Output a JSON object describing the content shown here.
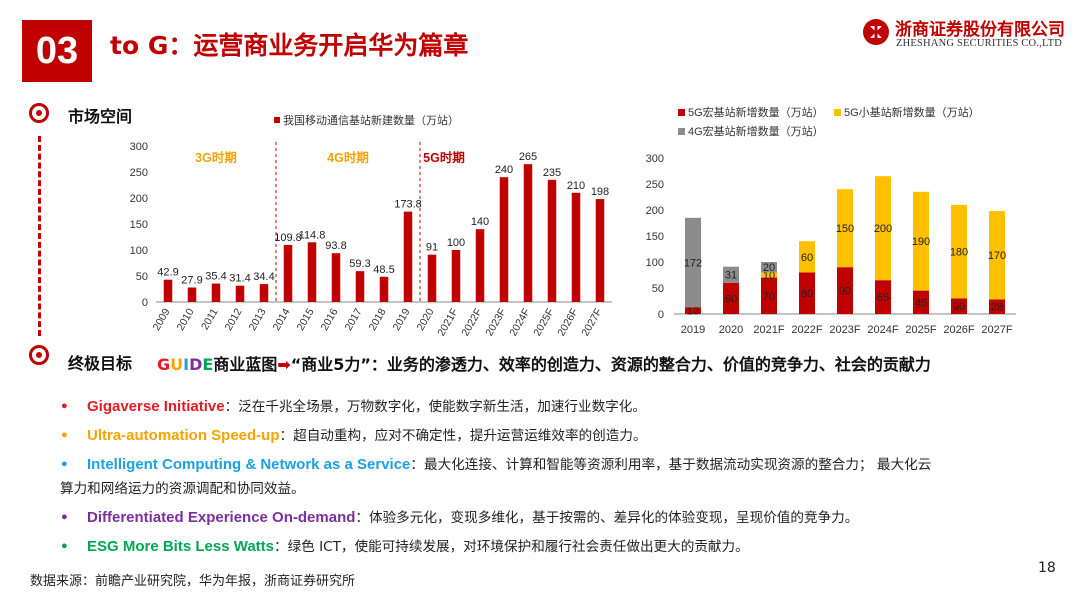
{
  "header": {
    "section_number": "03",
    "title": "to G：运营商业务开启华为篇章",
    "logo_cn": "浙商证券股份有限公司",
    "logo_en": "ZHESHANG SECURITIES CO.,LTD"
  },
  "section1": {
    "heading": "市场空间"
  },
  "section2": {
    "heading": "终极目标",
    "guide_letters": [
      {
        "ch": "G",
        "color": "#e31b23"
      },
      {
        "ch": "U",
        "color": "#f5a300"
      },
      {
        "ch": "I",
        "color": "#1ba1e2"
      },
      {
        "ch": "D",
        "color": "#7b2f9e"
      },
      {
        "ch": "E",
        "color": "#00a651"
      }
    ],
    "guide_suffix": "商业蓝图",
    "guide_rest": "“商业5力”：业务的渗透力、效率的创造力、资源的整合力、价值的竞争力、社会的贡献力"
  },
  "bullets": [
    {
      "keyword": "Gigaverse Initiative",
      "text": "：泛在千兆全场景，万物数字化，使能数字新生活，加速行业数字化。",
      "color": "#e31b23",
      "dot_color": "#e31b23"
    },
    {
      "keyword": "Ultra-automation Speed-up",
      "text": "：超自动重构，应对不确定性，提升运营运维效率的创造力。",
      "color": "#f5a300",
      "dot_color": "#f5a300"
    },
    {
      "keyword": "Intelligent Computing & Network as a Service",
      "text": "：最大化连接、计算和智能等资源利用率，基于数据流动实现资源的整合力；  最大化云",
      "continuation": "算力和网络运力的资源调配和协同效益。",
      "color": "#1ba1e2",
      "dot_color": "#1ba1e2"
    },
    {
      "keyword": "Differentiated Experience On-demand",
      "text": "：体验多元化，变现多维化，基于按需的、差异化的体验变现，呈现价值的竞争力。",
      "color": "#7b2f9e",
      "dot_color": "#7b2f9e"
    },
    {
      "keyword": "ESG More Bits Less Watts",
      "text": "：绿色 ICT，使能可持续发展，对环境保护和履行社会责任做出更大的贡献力。",
      "color": "#00a651",
      "dot_color": "#00a651"
    }
  ],
  "footer": {
    "source": "数据来源：前瞻产业研究院，华为年报，浙商证券研究所",
    "page_number": "18"
  },
  "colors": {
    "brand_red": "#c00000",
    "bar_red": "#c00000",
    "bar_yellow": "#ffc000",
    "bar_gray": "#8c8c8c"
  },
  "chart_data": [
    {
      "type": "bar",
      "legend": [
        "我国移动通信基站新建数量（万站）"
      ],
      "categories": [
        "2009",
        "2010",
        "2011",
        "2012",
        "2013",
        "2014",
        "2015",
        "2016",
        "2017",
        "2018",
        "2019",
        "2020",
        "2021F",
        "2022F",
        "2023F",
        "2024F",
        "2025F",
        "2026F",
        "2027F"
      ],
      "values": [
        42.9,
        27.9,
        35.4,
        31.4,
        34.4,
        109.8,
        114.8,
        93.8,
        59.3,
        48.5,
        173.8,
        91,
        100,
        140,
        240,
        265,
        235,
        210,
        198
      ],
      "value_labels": [
        "42.9",
        "27.9",
        "35.4",
        "31.4",
        "34.4",
        "109.8",
        "114.8",
        "93.8",
        "59.3",
        "48.5",
        "173.8",
        "91",
        "100",
        "140",
        "240",
        "265",
        "235",
        "210",
        "198"
      ],
      "yticks": [
        "0",
        "50",
        "100",
        "150",
        "200",
        "250",
        "300"
      ],
      "ylim": [
        0,
        300
      ],
      "periods": [
        {
          "label": "3G时期",
          "color": "#f5a300"
        },
        {
          "label": "4G时期",
          "color": "#f5a300"
        },
        {
          "label": "5G时期",
          "color": "#c00000"
        }
      ]
    },
    {
      "type": "bar",
      "stacked": true,
      "categories": [
        "2019",
        "2020",
        "2021F",
        "2022F",
        "2023F",
        "2024F",
        "2025F",
        "2026F",
        "2027F"
      ],
      "series": [
        {
          "name": "5G宏基站新增数量（万站）",
          "color": "#c00000",
          "values": [
            13,
            60,
            70,
            80,
            90,
            65,
            45,
            30,
            28
          ],
          "labels": [
            "13",
            "60",
            "70",
            "80",
            "90",
            "65",
            "45",
            "30",
            "28"
          ]
        },
        {
          "name": "5G小基站新增数量（万站）",
          "color": "#ffc000",
          "values": [
            0,
            0,
            10,
            60,
            150,
            200,
            190,
            180,
            170
          ],
          "labels": [
            "",
            "",
            "10",
            "60",
            "150",
            "200",
            "190",
            "180",
            "170"
          ]
        },
        {
          "name": "4G宏基站新增数量（万站）",
          "color": "#8c8c8c",
          "values": [
            172,
            31,
            20,
            0,
            0,
            0,
            0,
            0,
            0
          ],
          "labels": [
            "172",
            "31",
            "20",
            "",
            "",
            "",
            "",
            "",
            ""
          ]
        }
      ],
      "yticks": [
        "0",
        "50",
        "100",
        "150",
        "200",
        "250",
        "300"
      ],
      "ylim": [
        0,
        300
      ]
    }
  ]
}
